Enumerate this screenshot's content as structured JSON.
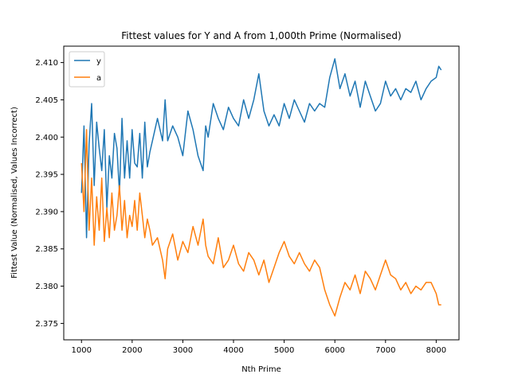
{
  "chart_data": {
    "type": "line",
    "title": "Fittest values for Y and A from 1,000th Prime (Normalised)",
    "xlabel": "Nth Prime",
    "ylabel": "Fittest Value (Normalised, Values Incorrect)",
    "xlim": [
      650,
      8450
    ],
    "ylim": [
      2.3728,
      2.4122
    ],
    "xticks": [
      1000,
      2000,
      3000,
      4000,
      5000,
      6000,
      7000,
      8000
    ],
    "xtick_labels": [
      "1000",
      "2000",
      "3000",
      "4000",
      "5000",
      "6000",
      "7000",
      "8000"
    ],
    "yticks": [
      2.375,
      2.38,
      2.385,
      2.39,
      2.395,
      2.4,
      2.405,
      2.41
    ],
    "ytick_labels": [
      "2.375",
      "2.380",
      "2.385",
      "2.390",
      "2.395",
      "2.400",
      "2.405",
      "2.410"
    ],
    "legend_position": "top-left",
    "grid": false,
    "series": [
      {
        "name": "y",
        "color": "#1f77b4",
        "x": [
          1000,
          1050,
          1100,
          1150,
          1200,
          1250,
          1300,
          1350,
          1400,
          1450,
          1500,
          1550,
          1600,
          1650,
          1700,
          1750,
          1800,
          1850,
          1900,
          1950,
          2000,
          2050,
          2100,
          2150,
          2200,
          2250,
          2300,
          2350,
          2400,
          2500,
          2600,
          2650,
          2700,
          2800,
          2900,
          3000,
          3100,
          3200,
          3300,
          3400,
          3450,
          3500,
          3600,
          3700,
          3800,
          3900,
          4000,
          4100,
          4200,
          4300,
          4400,
          4500,
          4600,
          4700,
          4800,
          4900,
          5000,
          5100,
          5200,
          5300,
          5400,
          5500,
          5600,
          5700,
          5800,
          5900,
          6000,
          6100,
          6200,
          6300,
          6400,
          6500,
          6600,
          6700,
          6800,
          6900,
          7000,
          7100,
          7200,
          7300,
          7400,
          7500,
          7600,
          7700,
          7800,
          7900,
          8000,
          8050,
          8100
        ],
        "y": [
          2.3925,
          2.4015,
          2.3865,
          2.399,
          2.4045,
          2.3935,
          2.402,
          2.3985,
          2.3955,
          2.401,
          2.3905,
          2.3975,
          2.3945,
          2.4005,
          2.3985,
          2.3925,
          2.4025,
          2.3945,
          2.3995,
          2.3945,
          2.401,
          2.3965,
          2.396,
          2.4005,
          2.3945,
          2.402,
          2.396,
          2.398,
          2.3995,
          2.4025,
          2.3995,
          2.405,
          2.3995,
          2.4015,
          2.4,
          2.3975,
          2.4035,
          2.401,
          2.3975,
          2.3955,
          2.4015,
          2.4,
          2.4045,
          2.4025,
          2.401,
          2.404,
          2.4025,
          2.4015,
          2.405,
          2.4025,
          2.405,
          2.4085,
          2.4035,
          2.4015,
          2.403,
          2.4015,
          2.4045,
          2.4025,
          2.405,
          2.4035,
          2.402,
          2.4045,
          2.4035,
          2.4045,
          2.404,
          2.408,
          2.4105,
          2.4065,
          2.4085,
          2.4055,
          2.4075,
          2.404,
          2.4075,
          2.4055,
          2.4035,
          2.4045,
          2.4075,
          2.4055,
          2.4065,
          2.405,
          2.4065,
          2.406,
          2.4075,
          2.405,
          2.4065,
          2.4075,
          2.408,
          2.4095,
          2.409
        ]
      },
      {
        "name": "a",
        "color": "#ff7f0e",
        "x": [
          1000,
          1050,
          1100,
          1150,
          1200,
          1250,
          1300,
          1350,
          1400,
          1450,
          1500,
          1550,
          1600,
          1650,
          1700,
          1750,
          1800,
          1850,
          1900,
          1950,
          2000,
          2050,
          2100,
          2150,
          2200,
          2250,
          2300,
          2350,
          2400,
          2500,
          2600,
          2650,
          2700,
          2800,
          2900,
          3000,
          3100,
          3200,
          3300,
          3400,
          3450,
          3500,
          3600,
          3700,
          3800,
          3900,
          4000,
          4100,
          4200,
          4300,
          4400,
          4500,
          4600,
          4700,
          4800,
          4900,
          5000,
          5100,
          5200,
          5300,
          5400,
          5500,
          5600,
          5700,
          5800,
          5900,
          6000,
          6100,
          6200,
          6300,
          6400,
          6500,
          6600,
          6700,
          6800,
          6900,
          7000,
          7100,
          7200,
          7300,
          7400,
          7500,
          7600,
          7700,
          7800,
          7900,
          8000,
          8050,
          8100
        ],
        "y": [
          2.3965,
          2.39,
          2.401,
          2.3875,
          2.3945,
          2.3855,
          2.392,
          2.3875,
          2.3945,
          2.386,
          2.3905,
          2.3865,
          2.3925,
          2.3875,
          2.3895,
          2.3935,
          2.3875,
          2.3915,
          2.3865,
          2.3895,
          2.388,
          2.3915,
          2.3875,
          2.3925,
          2.3895,
          2.3865,
          2.389,
          2.3875,
          2.3855,
          2.3865,
          2.3835,
          2.381,
          2.385,
          2.387,
          2.3835,
          2.386,
          2.3845,
          2.388,
          2.3855,
          2.389,
          2.3855,
          2.384,
          2.383,
          2.3865,
          2.3825,
          2.3835,
          2.3855,
          2.383,
          2.382,
          2.3845,
          2.3835,
          2.3815,
          2.3835,
          2.3805,
          2.3825,
          2.3845,
          2.386,
          2.384,
          2.383,
          2.3845,
          2.383,
          2.382,
          2.3835,
          2.3825,
          2.3795,
          2.3775,
          2.376,
          2.3785,
          2.3805,
          2.3795,
          2.3815,
          2.379,
          2.382,
          2.381,
          2.3795,
          2.3815,
          2.3835,
          2.3815,
          2.381,
          2.3795,
          2.3805,
          2.379,
          2.38,
          2.3795,
          2.3805,
          2.3805,
          2.379,
          2.3775,
          2.3775
        ]
      }
    ]
  }
}
